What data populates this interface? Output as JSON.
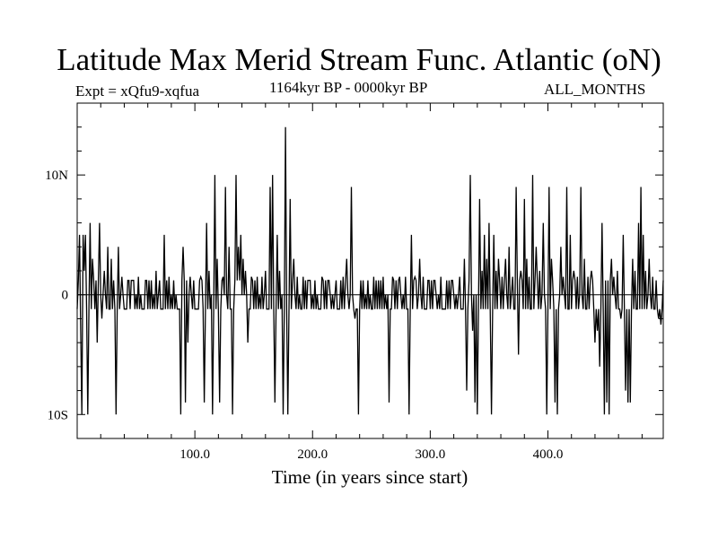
{
  "chart_data": {
    "type": "line",
    "title": "Latitude Max Merid Stream Func. Atlantic (oN)",
    "experiment": "Expt = xQfu9-xqfua",
    "period": "1164kyr BP - 0000kyr BP",
    "months": "ALL_MONTHS",
    "xlabel": "Time (in years since start)",
    "ylabel": "",
    "xlim": [
      0,
      498
    ],
    "ylim": [
      -12,
      16
    ],
    "xticks": [
      {
        "value": 100,
        "label": "100.0"
      },
      {
        "value": 200,
        "label": "200.0"
      },
      {
        "value": 300,
        "label": "300.0"
      },
      {
        "value": 400,
        "label": "400.0"
      }
    ],
    "yticks": [
      {
        "value": -10,
        "label": "10S"
      },
      {
        "value": 0,
        "label": "0"
      },
      {
        "value": 10,
        "label": "10N"
      }
    ],
    "x_minor_step": 20,
    "y_minor_step": 2,
    "reference_line": 0,
    "baseline": -1.2,
    "shelf": 1.2,
    "events": [
      [
        2,
        5
      ],
      [
        3,
        -3
      ],
      [
        4,
        -10
      ],
      [
        5,
        5
      ],
      [
        6,
        2
      ],
      [
        7,
        5
      ],
      [
        9,
        -10
      ],
      [
        11,
        6
      ],
      [
        13,
        3
      ],
      [
        17,
        -4
      ],
      [
        19,
        6
      ],
      [
        21,
        -2
      ],
      [
        23,
        2
      ],
      [
        26,
        4
      ],
      [
        29,
        3
      ],
      [
        33,
        -10
      ],
      [
        35,
        4
      ],
      [
        38,
        1.5
      ],
      [
        43,
        1.2
      ],
      [
        47,
        1.2
      ],
      [
        52,
        1.5
      ],
      [
        58,
        1.2
      ],
      [
        63,
        1.2
      ],
      [
        67,
        2
      ],
      [
        70,
        1.2
      ],
      [
        74,
        5
      ],
      [
        78,
        1.5
      ],
      [
        82,
        1.2
      ],
      [
        86,
        -1.2
      ],
      [
        88,
        -10
      ],
      [
        90,
        4
      ],
      [
        92,
        -9
      ],
      [
        94,
        -4
      ],
      [
        96,
        1.5
      ],
      [
        99,
        1.2
      ],
      [
        105,
        1.5
      ],
      [
        108,
        -9
      ],
      [
        110,
        6
      ],
      [
        112,
        2
      ],
      [
        115,
        -10
      ],
      [
        117,
        10
      ],
      [
        119,
        3
      ],
      [
        121,
        -9
      ],
      [
        124,
        1.5
      ],
      [
        126,
        9
      ],
      [
        129,
        4
      ],
      [
        132,
        -10
      ],
      [
        135,
        10
      ],
      [
        137,
        4
      ],
      [
        139,
        5
      ],
      [
        141,
        3
      ],
      [
        143,
        2
      ],
      [
        145,
        -4
      ],
      [
        148,
        1.5
      ],
      [
        153,
        1.5
      ],
      [
        157,
        1.5
      ],
      [
        160,
        2
      ],
      [
        164,
        9
      ],
      [
        166,
        10
      ],
      [
        168,
        -9
      ],
      [
        170,
        5
      ],
      [
        172,
        2
      ],
      [
        175,
        -10
      ],
      [
        177,
        14
      ],
      [
        179,
        -10
      ],
      [
        181,
        8
      ],
      [
        184,
        3
      ],
      [
        187,
        1.5
      ],
      [
        192,
        1.5
      ],
      [
        197,
        1.2
      ],
      [
        202,
        1.2
      ],
      [
        208,
        1.5
      ],
      [
        214,
        1.2
      ],
      [
        220,
        1.2
      ],
      [
        226,
        1.5
      ],
      [
        229,
        3
      ],
      [
        233,
        9
      ],
      [
        236,
        -2
      ],
      [
        239,
        -10
      ],
      [
        243,
        1.2
      ],
      [
        247,
        1.2
      ],
      [
        252,
        1.5
      ],
      [
        256,
        1.2
      ],
      [
        260,
        1.5
      ],
      [
        265,
        -9
      ],
      [
        268,
        1.5
      ],
      [
        274,
        1.5
      ],
      [
        279,
        1.5
      ],
      [
        282,
        -10
      ],
      [
        284,
        5
      ],
      [
        287,
        1.5
      ],
      [
        291,
        3
      ],
      [
        294,
        1.5
      ],
      [
        298,
        1.2
      ],
      [
        304,
        1.2
      ],
      [
        309,
        1.5
      ],
      [
        314,
        1.2
      ],
      [
        319,
        1.2
      ],
      [
        325,
        1.5
      ],
      [
        329,
        3
      ],
      [
        331,
        -8
      ],
      [
        334,
        10
      ],
      [
        336,
        -3
      ],
      [
        338,
        -9
      ],
      [
        340,
        -10
      ],
      [
        342,
        8
      ],
      [
        344,
        2
      ],
      [
        346,
        5
      ],
      [
        348,
        3
      ],
      [
        350,
        6
      ],
      [
        352,
        -10
      ],
      [
        354,
        5
      ],
      [
        356,
        2
      ],
      [
        358,
        3
      ],
      [
        361,
        1.5
      ],
      [
        364,
        3
      ],
      [
        367,
        4
      ],
      [
        370,
        1.5
      ],
      [
        373,
        9
      ],
      [
        375,
        -5
      ],
      [
        377,
        2
      ],
      [
        380,
        8
      ],
      [
        382,
        3
      ],
      [
        384,
        1.5
      ],
      [
        387,
        10
      ],
      [
        390,
        4
      ],
      [
        393,
        2
      ],
      [
        396,
        6
      ],
      [
        399,
        -10
      ],
      [
        401,
        9
      ],
      [
        403,
        3
      ],
      [
        406,
        -9
      ],
      [
        408,
        -10
      ],
      [
        411,
        4
      ],
      [
        413,
        1.5
      ],
      [
        416,
        9
      ],
      [
        419,
        5
      ],
      [
        422,
        2
      ],
      [
        425,
        1.5
      ],
      [
        428,
        9
      ],
      [
        431,
        3
      ],
      [
        434,
        1.5
      ],
      [
        437,
        2
      ],
      [
        440,
        -4
      ],
      [
        442,
        -3
      ],
      [
        444,
        -6
      ],
      [
        446,
        6
      ],
      [
        448,
        -10
      ],
      [
        450,
        -9
      ],
      [
        452,
        -10
      ],
      [
        454,
        3
      ],
      [
        456,
        1.5
      ],
      [
        459,
        2
      ],
      [
        462,
        -2
      ],
      [
        464,
        5
      ],
      [
        466,
        -8
      ],
      [
        468,
        -9
      ],
      [
        470,
        -9
      ],
      [
        472,
        3
      ],
      [
        474,
        2
      ],
      [
        477,
        6
      ],
      [
        479,
        9
      ],
      [
        481,
        5
      ],
      [
        483,
        2
      ],
      [
        486,
        3
      ],
      [
        489,
        1.5
      ],
      [
        492,
        1.2
      ],
      [
        494,
        -2
      ],
      [
        496,
        -2.5
      ]
    ]
  }
}
